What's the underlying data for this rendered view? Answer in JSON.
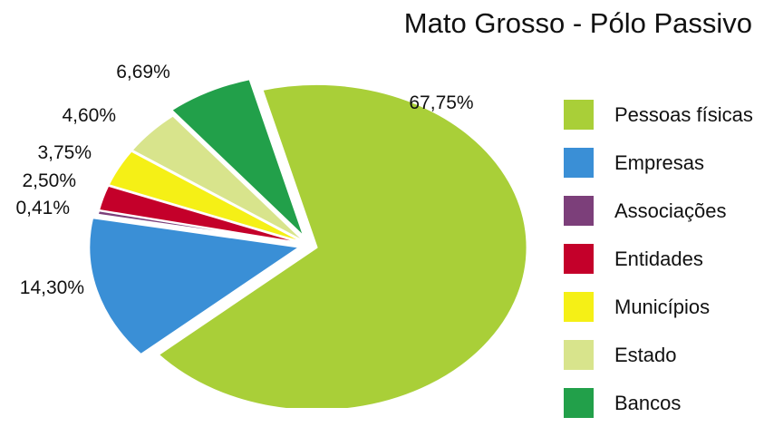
{
  "chart_data": {
    "type": "pie",
    "title": "Mato Grosso - Pólo Passivo",
    "slices": [
      {
        "label": "Pessoas físicas",
        "value": 67.75,
        "value_label": "67,75%",
        "color": "#a9cf38"
      },
      {
        "label": "Empresas",
        "value": 14.3,
        "value_label": "14,30%",
        "color": "#3a8fd6"
      },
      {
        "label": "Associações",
        "value": 0.41,
        "value_label": "0,41%",
        "color": "#7c3f7a"
      },
      {
        "label": "Entidades",
        "value": 2.5,
        "value_label": "2,50%",
        "color": "#c4002a"
      },
      {
        "label": "Municípios",
        "value": 3.75,
        "value_label": "3,75%",
        "color": "#f5f016"
      },
      {
        "label": "Estado",
        "value": 4.6,
        "value_label": "4,60%",
        "color": "#d8e48c"
      },
      {
        "label": "Bancos",
        "value": 6.69,
        "value_label": "6,69%",
        "color": "#22a04a"
      }
    ],
    "legend_position": "right",
    "exploded": true
  }
}
